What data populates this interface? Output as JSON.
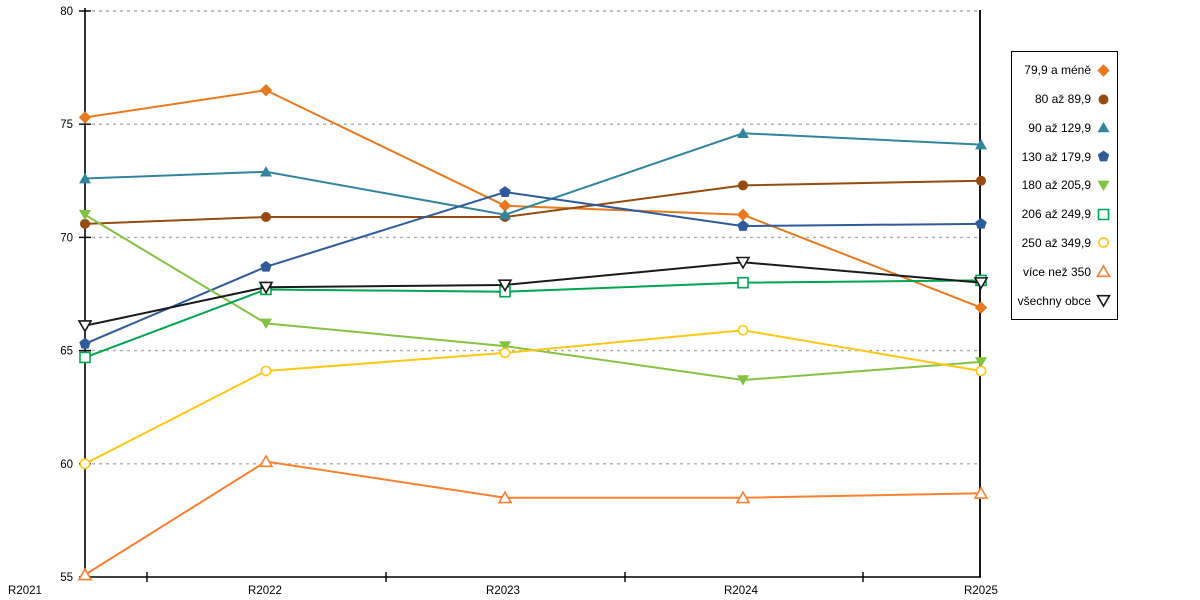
{
  "chart_data": {
    "type": "line",
    "title": "",
    "xlabel": "",
    "ylabel": "",
    "categories": [
      "R2021",
      "R2022",
      "R2023",
      "R2024",
      "R2025"
    ],
    "series": [
      {
        "name": "79,9 a méně",
        "marker": "diamond",
        "fill": "filled",
        "color": "#E8791F",
        "values": [
          75.3,
          76.5,
          71.4,
          71.0,
          66.9
        ]
      },
      {
        "name": "80 až 89,9",
        "marker": "circle",
        "fill": "filled",
        "color": "#974B0E",
        "values": [
          70.6,
          70.9,
          70.9,
          72.3,
          72.5
        ]
      },
      {
        "name": "90 až 129,9",
        "marker": "triangle-up",
        "fill": "filled",
        "color": "#31859C",
        "values": [
          72.6,
          72.9,
          71.0,
          74.6,
          74.1
        ]
      },
      {
        "name": "130 až 179,9",
        "marker": "pentagon",
        "fill": "filled",
        "color": "#2E5B9C",
        "values": [
          65.3,
          68.7,
          72.0,
          70.5,
          70.6
        ]
      },
      {
        "name": "180 až 205,9",
        "marker": "triangle-down",
        "fill": "filled",
        "color": "#84C341",
        "values": [
          71.0,
          66.2,
          65.2,
          63.7,
          64.5
        ]
      },
      {
        "name": "206 až 249,9",
        "marker": "square",
        "fill": "open",
        "color": "#00A550",
        "values": [
          64.7,
          67.7,
          67.6,
          68.0,
          68.1
        ]
      },
      {
        "name": "250 až 349,9",
        "marker": "circle",
        "fill": "open",
        "color": "#FFC613",
        "values": [
          60.0,
          64.1,
          64.9,
          65.9,
          64.1
        ]
      },
      {
        "name": "více než 350",
        "marker": "triangle-up",
        "fill": "open",
        "color": "#F8802F",
        "values": [
          55.1,
          60.1,
          58.5,
          58.5,
          58.7
        ]
      },
      {
        "name": "všechny obce",
        "marker": "triangle-down",
        "fill": "open",
        "color": "#1A1A1A",
        "values": [
          66.1,
          67.8,
          67.9,
          68.9,
          68.0
        ]
      }
    ],
    "ylim": [
      55,
      80
    ],
    "yticks": [
      55,
      60,
      65,
      70,
      75,
      80
    ],
    "grid": "horizontal-dashed",
    "legend_position": "right",
    "colors": {
      "grid": "#ABABAB",
      "axis": "#000000",
      "background": "#FFFFFF"
    }
  }
}
